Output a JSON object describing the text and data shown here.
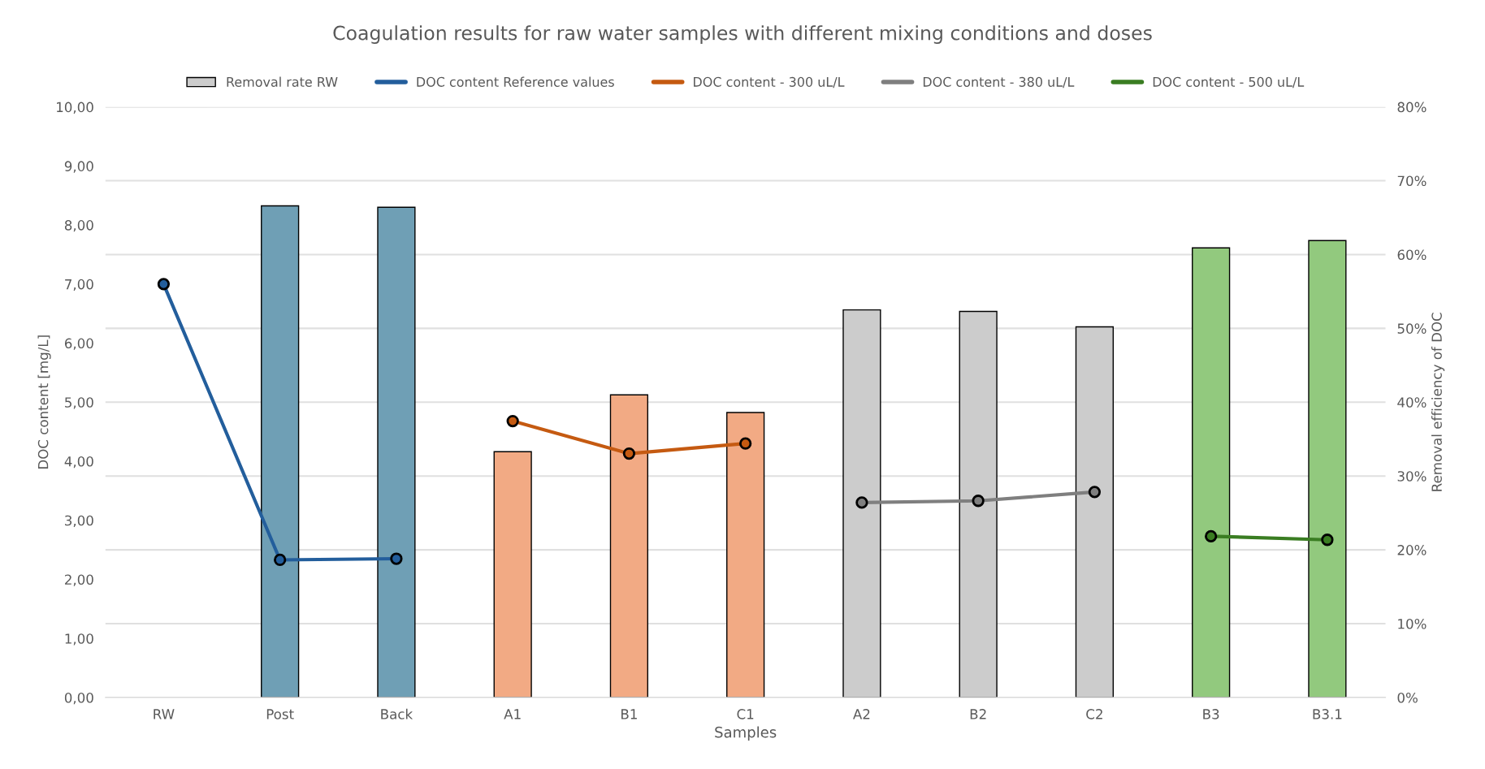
{
  "chart_data": {
    "type": "line",
    "title": "Coagulation results for raw water samples with different mixing conditions and doses",
    "xlabel": "Samples",
    "ylabel": "DOC content [mg/L]",
    "y2label": "Removal efficiency of DOC",
    "categories": [
      "RW",
      "Post",
      "Back",
      "A1",
      "B1",
      "C1",
      "A2",
      "B2",
      "C2",
      "B3",
      "B3.1"
    ],
    "series": [
      {
        "name": "Removal rate RW",
        "type": "bar",
        "axis": "y2",
        "color": "#cccccc",
        "colors": [
          "#6f9fb5",
          "#6f9fb5",
          "#6f9fb5",
          "#f2aa84",
          "#f2aa84",
          "#f2aa84",
          "#cccccc",
          "#cccccc",
          "#cccccc",
          "#92c97e",
          "#92c97e"
        ],
        "values": [
          null,
          66.6,
          66.4,
          33.3,
          41.0,
          38.6,
          52.5,
          52.3,
          50.2,
          60.9,
          61.9
        ]
      },
      {
        "name": "DOC content Reference values",
        "color": "#235e9c",
        "values": [
          7.0,
          2.33,
          2.35,
          null,
          null,
          null,
          null,
          null,
          null,
          null,
          null
        ]
      },
      {
        "name": "DOC content - 300 uL/L",
        "color": "#c55a11",
        "values": [
          null,
          null,
          null,
          4.68,
          4.13,
          4.3,
          null,
          null,
          null,
          null,
          null
        ]
      },
      {
        "name": "DOC content - 380 uL/L",
        "color": "#7f7f7f",
        "values": [
          null,
          null,
          null,
          null,
          null,
          null,
          3.3,
          3.33,
          3.48,
          null,
          null
        ]
      },
      {
        "name": "DOC content - 500 uL/L",
        "color": "#3a7d22",
        "values": [
          null,
          null,
          null,
          null,
          null,
          null,
          null,
          null,
          null,
          2.73,
          2.67
        ]
      }
    ],
    "ylim": [
      0,
      10
    ],
    "yticks": [
      {
        "value": 0,
        "label": "0,00"
      },
      {
        "value": 1,
        "label": "1,00"
      },
      {
        "value": 2,
        "label": "2,00"
      },
      {
        "value": 3,
        "label": "3,00"
      },
      {
        "value": 4,
        "label": "4,00"
      },
      {
        "value": 5,
        "label": "5,00"
      },
      {
        "value": 6,
        "label": "6,00"
      },
      {
        "value": 7,
        "label": "7,00"
      },
      {
        "value": 8,
        "label": "8,00"
      },
      {
        "value": 9,
        "label": "9,00"
      },
      {
        "value": 10,
        "label": "10,00"
      }
    ],
    "y2lim": [
      0,
      80
    ],
    "y2ticks": [
      {
        "value": 0,
        "label": "0%"
      },
      {
        "value": 10,
        "label": "10%"
      },
      {
        "value": 20,
        "label": "20%"
      },
      {
        "value": 30,
        "label": "30%"
      },
      {
        "value": 40,
        "label": "40%"
      },
      {
        "value": 50,
        "label": "50%"
      },
      {
        "value": 60,
        "label": "60%"
      },
      {
        "value": 70,
        "label": "70%"
      },
      {
        "value": 80,
        "label": "80%"
      }
    ],
    "grid": true,
    "legend": "top",
    "marker": "circle",
    "line_style": "solid"
  }
}
